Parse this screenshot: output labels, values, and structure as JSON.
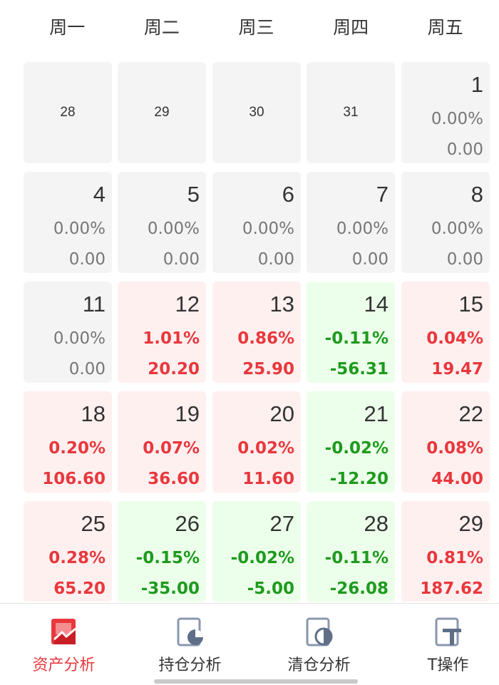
{
  "weekdays": [
    "周一",
    "周二",
    "周三",
    "周四",
    "周五"
  ],
  "calendar": {
    "rows": [
      [
        {
          "day": "28",
          "state": "plain"
        },
        {
          "day": "29",
          "state": "plain"
        },
        {
          "day": "30",
          "state": "plain"
        },
        {
          "day": "31",
          "state": "plain"
        },
        {
          "day": "1",
          "pct": "0.00%",
          "amount": "0.00",
          "state": "neutral"
        }
      ],
      [
        {
          "day": "4",
          "pct": "0.00%",
          "amount": "0.00",
          "state": "neutral"
        },
        {
          "day": "5",
          "pct": "0.00%",
          "amount": "0.00",
          "state": "neutral"
        },
        {
          "day": "6",
          "pct": "0.00%",
          "amount": "0.00",
          "state": "neutral"
        },
        {
          "day": "7",
          "pct": "0.00%",
          "amount": "0.00",
          "state": "neutral"
        },
        {
          "day": "8",
          "pct": "0.00%",
          "amount": "0.00",
          "state": "neutral"
        }
      ],
      [
        {
          "day": "11",
          "pct": "0.00%",
          "amount": "0.00",
          "state": "neutral"
        },
        {
          "day": "12",
          "pct": "1.01%",
          "amount": "20.20",
          "state": "up"
        },
        {
          "day": "13",
          "pct": "0.86%",
          "amount": "25.90",
          "state": "up"
        },
        {
          "day": "14",
          "pct": "-0.11%",
          "amount": "-56.31",
          "state": "down"
        },
        {
          "day": "15",
          "pct": "0.04%",
          "amount": "19.47",
          "state": "up"
        }
      ],
      [
        {
          "day": "18",
          "pct": "0.20%",
          "amount": "106.60",
          "state": "up"
        },
        {
          "day": "19",
          "pct": "0.07%",
          "amount": "36.60",
          "state": "up"
        },
        {
          "day": "20",
          "pct": "0.02%",
          "amount": "11.60",
          "state": "up"
        },
        {
          "day": "21",
          "pct": "-0.02%",
          "amount": "-12.20",
          "state": "down"
        },
        {
          "day": "22",
          "pct": "0.08%",
          "amount": "44.00",
          "state": "up"
        }
      ],
      [
        {
          "day": "25",
          "pct": "0.28%",
          "amount": "65.20",
          "state": "up"
        },
        {
          "day": "26",
          "pct": "-0.15%",
          "amount": "-35.00",
          "state": "down"
        },
        {
          "day": "27",
          "pct": "-0.02%",
          "amount": "-5.00",
          "state": "down"
        },
        {
          "day": "28",
          "pct": "-0.11%",
          "amount": "-26.08",
          "state": "down"
        },
        {
          "day": "29",
          "pct": "0.81%",
          "amount": "187.62",
          "state": "up"
        }
      ]
    ]
  },
  "colors": {
    "up": "#e8383d",
    "down": "#1e9a1e",
    "neutral": "#777777",
    "accent": "#e8383d"
  },
  "tabs": [
    {
      "label": "资产分析",
      "icon": "asset-analysis-icon",
      "active": true
    },
    {
      "label": "持仓分析",
      "icon": "holding-analysis-icon",
      "active": false
    },
    {
      "label": "清仓分析",
      "icon": "clearance-analysis-icon",
      "active": false
    },
    {
      "label": "T操作",
      "icon": "t-operation-icon",
      "active": false
    }
  ]
}
